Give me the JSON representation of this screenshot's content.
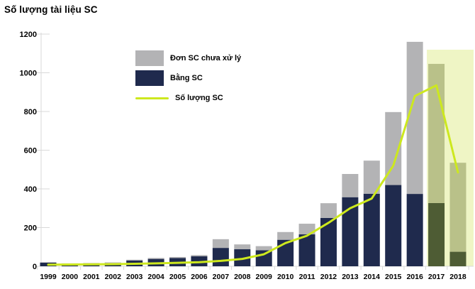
{
  "page": {
    "background": "#ffffff"
  },
  "chart_data": {
    "type": "combo",
    "title": "Số lượng tài liệu SC",
    "categories": [
      "1999",
      "2000",
      "2001",
      "2002",
      "2003",
      "2004",
      "2005",
      "2006",
      "2007",
      "2008",
      "2009",
      "2010",
      "2011",
      "2012",
      "2013",
      "2014",
      "2015",
      "2016",
      "2017",
      "2018"
    ],
    "series": [
      {
        "name": "Bằng SC",
        "type": "bar",
        "stacked": true,
        "color": "#1f2a4d",
        "highlight_color": "#4e5c34",
        "values": [
          19,
          13,
          15,
          17,
          30,
          38,
          43,
          52,
          95,
          88,
          83,
          137,
          165,
          250,
          357,
          375,
          420,
          374,
          327,
          75
        ]
      },
      {
        "name": "Đơn SC chưa xử lý",
        "type": "bar",
        "stacked": true,
        "color": "#b3b3b5",
        "highlight_color": "#b9c189",
        "values": [
          2,
          2,
          2,
          3,
          4,
          5,
          5,
          6,
          45,
          25,
          21,
          40,
          55,
          76,
          120,
          171,
          377,
          786,
          719,
          460
        ]
      },
      {
        "name": "Số lượng SC",
        "type": "line",
        "color": "#cde81e",
        "values": [
          8,
          9,
          10,
          11,
          13,
          15,
          18,
          21,
          28,
          38,
          62,
          120,
          158,
          225,
          300,
          350,
          520,
          880,
          935,
          485
        ]
      }
    ],
    "legend": [
      {
        "label": "Đơn SC chưa xử lý",
        "swatch": "rect",
        "color": "#b3b3b5"
      },
      {
        "label": "Bằng SC",
        "swatch": "rect",
        "color": "#1f2a4d"
      },
      {
        "label": "Số lượng SC",
        "swatch": "line",
        "color": "#cde81e"
      }
    ],
    "xlabel": "",
    "ylabel": "",
    "ylim": [
      0,
      1200
    ],
    "yticks": [
      0,
      200,
      400,
      600,
      800,
      1000,
      1200
    ],
    "grid": false,
    "legend_position": "top-center",
    "highlight": {
      "categories": [
        "2017",
        "2018"
      ],
      "background": "#eff5c5"
    },
    "axis_color": "#d9d9d9"
  }
}
